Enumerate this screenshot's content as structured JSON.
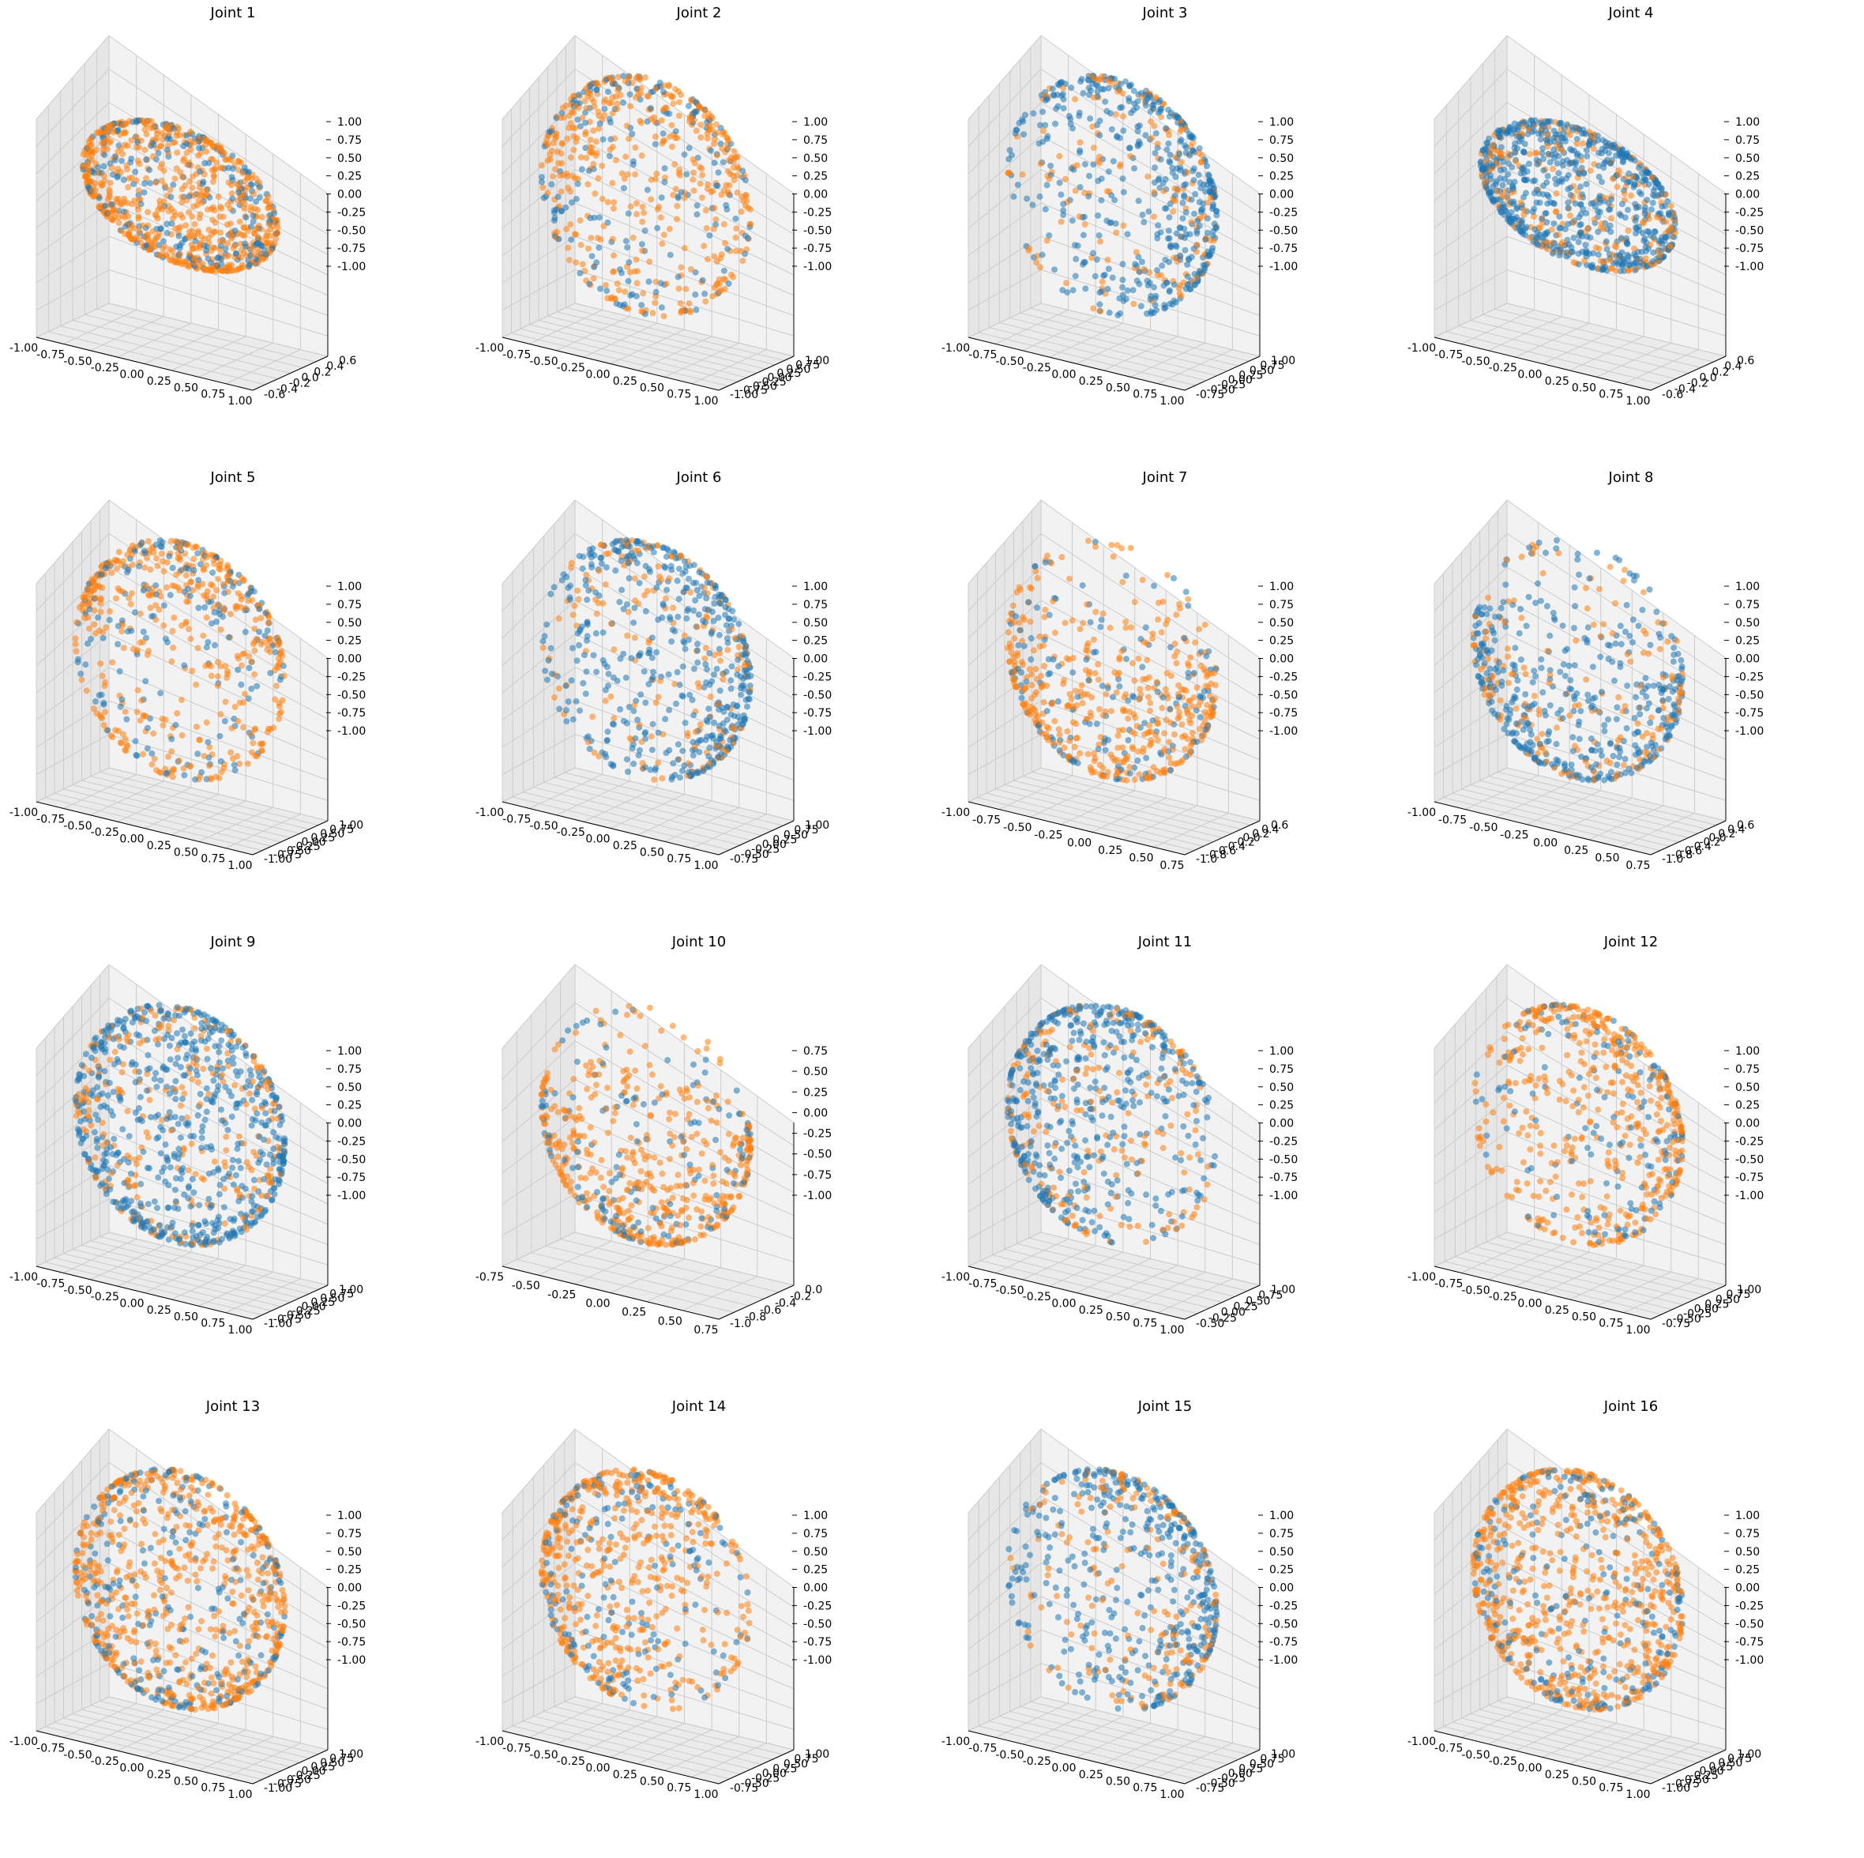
{
  "figure": {
    "rows": 4,
    "cols": 4
  },
  "colors": {
    "series_a": "#1f77b4",
    "series_b": "#ff7f0e",
    "pane_back": "#f2f2f2",
    "pane_side": "#e6e6e6",
    "pane_floor": "#ebebeb",
    "grid": "#cccccc"
  },
  "chart_data": [
    {
      "title": "Joint 1",
      "type": "scatter",
      "shape": "ring",
      "dominant": "orange",
      "seed": 11,
      "xticks": [
        "-1.00",
        "-0.75",
        "-0.50",
        "-0.25",
        "0.00",
        "0.25",
        "0.50",
        "0.75",
        "1.00"
      ],
      "yticks": [
        "-0.6",
        "-0.4",
        "-0.2",
        "0.0",
        "0.2",
        "0.4",
        "0.6"
      ],
      "zticks": [
        "-1.00",
        "-0.75",
        "-0.50",
        "-0.25",
        "0.00",
        "0.25",
        "0.50",
        "0.75",
        "1.00"
      ],
      "xlim": [
        -1,
        1
      ],
      "ylim": [
        -0.7,
        0.7
      ],
      "zlim": [
        -1,
        1
      ],
      "grid": true
    },
    {
      "title": "Joint 2",
      "type": "scatter",
      "shape": "sparse_cap",
      "dominant": "orange",
      "seed": 12,
      "xticks": [
        "-1.00",
        "-0.75",
        "-0.50",
        "-0.25",
        "0.00",
        "0.25",
        "0.50",
        "0.75",
        "1.00"
      ],
      "yticks": [
        "-1.00",
        "-0.75",
        "-0.50",
        "-0.25",
        "0.00",
        "0.25",
        "0.50",
        "0.75",
        "1.00"
      ],
      "zticks": [
        "-1.00",
        "-0.75",
        "-0.50",
        "-0.25",
        "0.00",
        "0.25",
        "0.50",
        "0.75",
        "1.00"
      ],
      "xlim": [
        -1,
        1
      ],
      "ylim": [
        -1,
        1
      ],
      "zlim": [
        -1,
        1
      ],
      "grid": true
    },
    {
      "title": "Joint 3",
      "type": "scatter",
      "shape": "cap_right",
      "dominant": "blue",
      "seed": 13,
      "xticks": [
        "-1.00",
        "-0.75",
        "-0.50",
        "-0.25",
        "0.00",
        "0.25",
        "0.50",
        "0.75",
        "1.00"
      ],
      "yticks": [
        "-0.75",
        "-0.50",
        "-0.25",
        "0.00",
        "0.25",
        "0.50",
        "0.75",
        "1.00"
      ],
      "zticks": [
        "-1.00",
        "-0.75",
        "-0.50",
        "-0.25",
        "0.00",
        "0.25",
        "0.50",
        "0.75",
        "1.00"
      ],
      "xlim": [
        -1,
        1
      ],
      "ylim": [
        -0.85,
        1
      ],
      "zlim": [
        -1,
        1
      ],
      "grid": true
    },
    {
      "title": "Joint 4",
      "type": "scatter",
      "shape": "ring",
      "dominant": "blue",
      "seed": 14,
      "xticks": [
        "-1.00",
        "-0.75",
        "-0.50",
        "-0.25",
        "0.00",
        "0.25",
        "0.50",
        "0.75",
        "1.00"
      ],
      "yticks": [
        "-0.6",
        "-0.4",
        "-0.2",
        "0.0",
        "0.2",
        "0.4",
        "0.6"
      ],
      "zticks": [
        "-1.00",
        "-0.75",
        "-0.50",
        "-0.25",
        "0.00",
        "0.25",
        "0.50",
        "0.75",
        "1.00"
      ],
      "xlim": [
        -1,
        1
      ],
      "ylim": [
        -0.7,
        0.7
      ],
      "zlim": [
        -1,
        1
      ],
      "grid": true
    },
    {
      "title": "Joint 5",
      "type": "scatter",
      "shape": "sparse_cap",
      "dominant": "orange",
      "seed": 15,
      "xticks": [
        "-1.00",
        "-0.75",
        "-0.50",
        "-0.25",
        "0.00",
        "0.25",
        "0.50",
        "0.75",
        "1.00"
      ],
      "yticks": [
        "-1.00",
        "-0.75",
        "-0.50",
        "-0.25",
        "0.00",
        "0.25",
        "0.50",
        "0.75",
        "1.00"
      ],
      "zticks": [
        "-1.00",
        "-0.75",
        "-0.50",
        "-0.25",
        "0.00",
        "0.25",
        "0.50",
        "0.75",
        "1.00"
      ],
      "xlim": [
        -1,
        1
      ],
      "ylim": [
        -1,
        1
      ],
      "zlim": [
        -1,
        1
      ],
      "grid": true
    },
    {
      "title": "Joint 6",
      "type": "scatter",
      "shape": "cap_right",
      "dominant": "blue",
      "seed": 16,
      "xticks": [
        "-1.00",
        "-0.75",
        "-0.50",
        "-0.25",
        "0.00",
        "0.25",
        "0.50",
        "0.75",
        "1.00"
      ],
      "yticks": [
        "-0.75",
        "-0.50",
        "-0.25",
        "0.00",
        "0.25",
        "0.50",
        "0.75",
        "1.00"
      ],
      "zticks": [
        "-1.00",
        "-0.75",
        "-0.50",
        "-0.25",
        "0.00",
        "0.25",
        "0.50",
        "0.75",
        "1.00"
      ],
      "xlim": [
        -1,
        1
      ],
      "ylim": [
        -0.85,
        1
      ],
      "zlim": [
        -1,
        1
      ],
      "grid": true
    },
    {
      "title": "Joint 7",
      "type": "scatter",
      "shape": "bowl",
      "dominant": "orange",
      "seed": 17,
      "xticks": [
        "-1.00",
        "-0.75",
        "-0.50",
        "-0.25",
        "0.00",
        "0.25",
        "0.50",
        "0.75"
      ],
      "yticks": [
        "-1.0",
        "-0.8",
        "-0.6",
        "-0.4",
        "-0.2",
        "0.0",
        "0.2",
        "0.4",
        "0.6"
      ],
      "zticks": [
        "-1.00",
        "-0.75",
        "-0.50",
        "-0.25",
        "0.00",
        "0.25",
        "0.50",
        "0.75",
        "1.00"
      ],
      "xlim": [
        -1,
        0.85
      ],
      "ylim": [
        -1.1,
        0.7
      ],
      "zlim": [
        -1,
        1
      ],
      "grid": true
    },
    {
      "title": "Joint 8",
      "type": "scatter",
      "shape": "bowl",
      "dominant": "blue",
      "seed": 18,
      "xticks": [
        "-1.00",
        "-0.75",
        "-0.50",
        "-0.25",
        "0.00",
        "0.25",
        "0.50",
        "0.75"
      ],
      "yticks": [
        "-1.0",
        "-0.8",
        "-0.6",
        "-0.4",
        "-0.2",
        "0.0",
        "0.2",
        "0.4",
        "0.6"
      ],
      "zticks": [
        "-1.00",
        "-0.75",
        "-0.50",
        "-0.25",
        "0.00",
        "0.25",
        "0.50",
        "0.75",
        "1.00"
      ],
      "xlim": [
        -1,
        0.85
      ],
      "ylim": [
        -1.1,
        0.7
      ],
      "zlim": [
        -1,
        1
      ],
      "grid": true
    },
    {
      "title": "Joint 9",
      "type": "scatter",
      "shape": "sphere",
      "dominant": "blue",
      "seed": 19,
      "xticks": [
        "-1.00",
        "-0.75",
        "-0.50",
        "-0.25",
        "0.00",
        "0.25",
        "0.50",
        "0.75",
        "1.00"
      ],
      "yticks": [
        "-1.00",
        "-0.75",
        "-0.50",
        "-0.25",
        "0.00",
        "0.25",
        "0.50",
        "0.75",
        "1.00"
      ],
      "zticks": [
        "-1.00",
        "-0.75",
        "-0.50",
        "-0.25",
        "0.00",
        "0.25",
        "0.50",
        "0.75",
        "1.00"
      ],
      "xlim": [
        -1,
        1
      ],
      "ylim": [
        -1,
        1
      ],
      "zlim": [
        -1,
        1
      ],
      "grid": true
    },
    {
      "title": "Joint 10",
      "type": "scatter",
      "shape": "bowl",
      "dominant": "orange",
      "seed": 20,
      "xticks": [
        "-0.75",
        "-0.50",
        "-0.25",
        "0.00",
        "0.25",
        "0.50",
        "0.75"
      ],
      "yticks": [
        "-1.0",
        "-0.8",
        "-0.6",
        "-0.4",
        "-0.2",
        "0.0"
      ],
      "zticks": [
        "-1.00",
        "-0.75",
        "-0.50",
        "-0.25",
        "0.00",
        "0.25",
        "0.50",
        "0.75"
      ],
      "xlim": [
        -0.9,
        0.9
      ],
      "ylim": [
        -1.1,
        0.1
      ],
      "zlim": [
        -1,
        0.9
      ],
      "grid": true
    },
    {
      "title": "Joint 11",
      "type": "scatter",
      "shape": "cap_left",
      "dominant": "blue",
      "seed": 21,
      "xticks": [
        "-1.00",
        "-0.75",
        "-0.50",
        "-0.25",
        "0.00",
        "0.25",
        "0.50",
        "0.75",
        "1.00"
      ],
      "yticks": [
        "-0.50",
        "-0.25",
        "0.00",
        "0.25",
        "0.50",
        "0.75",
        "1.00"
      ],
      "zticks": [
        "-1.00",
        "-0.75",
        "-0.50",
        "-0.25",
        "0.00",
        "0.25",
        "0.50",
        "0.75",
        "1.00"
      ],
      "xlim": [
        -1,
        1
      ],
      "ylim": [
        -0.6,
        1
      ],
      "zlim": [
        -1,
        1
      ],
      "grid": true
    },
    {
      "title": "Joint 12",
      "type": "scatter",
      "shape": "cap_right",
      "dominant": "orange",
      "seed": 22,
      "xticks": [
        "-1.00",
        "-0.75",
        "-0.50",
        "-0.25",
        "0.00",
        "0.25",
        "0.50",
        "0.75",
        "1.00"
      ],
      "yticks": [
        "-0.75",
        "-0.50",
        "-0.25",
        "0.00",
        "0.25",
        "0.50",
        "0.75",
        "1.00"
      ],
      "zticks": [
        "-1.00",
        "-0.75",
        "-0.50",
        "-0.25",
        "0.00",
        "0.25",
        "0.50",
        "0.75",
        "1.00"
      ],
      "xlim": [
        -1,
        1
      ],
      "ylim": [
        -0.85,
        1
      ],
      "zlim": [
        -1,
        1
      ],
      "grid": true
    },
    {
      "title": "Joint 13",
      "type": "scatter",
      "shape": "sphere",
      "dominant": "orange",
      "seed": 23,
      "xticks": [
        "-1.00",
        "-0.75",
        "-0.50",
        "-0.25",
        "0.00",
        "0.25",
        "0.50",
        "0.75",
        "1.00"
      ],
      "yticks": [
        "-1.00",
        "-0.75",
        "-0.50",
        "-0.25",
        "0.00",
        "0.25",
        "0.50",
        "0.75",
        "1.00"
      ],
      "zticks": [
        "-1.00",
        "-0.75",
        "-0.50",
        "-0.25",
        "0.00",
        "0.25",
        "0.50",
        "0.75",
        "1.00"
      ],
      "xlim": [
        -1,
        1
      ],
      "ylim": [
        -1,
        1
      ],
      "zlim": [
        -1,
        1
      ],
      "grid": true
    },
    {
      "title": "Joint 14",
      "type": "scatter",
      "shape": "cap_left",
      "dominant": "orange",
      "seed": 24,
      "xticks": [
        "-1.00",
        "-0.75",
        "-0.50",
        "-0.25",
        "0.00",
        "0.25",
        "0.50",
        "0.75",
        "1.00"
      ],
      "yticks": [
        "-0.75",
        "-0.50",
        "-0.25",
        "0.00",
        "0.25",
        "0.50",
        "0.75",
        "1.00"
      ],
      "zticks": [
        "-1.00",
        "-0.75",
        "-0.50",
        "-0.25",
        "0.00",
        "0.25",
        "0.50",
        "0.75",
        "1.00"
      ],
      "xlim": [
        -1,
        1
      ],
      "ylim": [
        -0.85,
        1
      ],
      "zlim": [
        -1,
        1
      ],
      "grid": true
    },
    {
      "title": "Joint 15",
      "type": "scatter",
      "shape": "cap_right",
      "dominant": "blue",
      "seed": 25,
      "xticks": [
        "-1.00",
        "-0.75",
        "-0.50",
        "-0.25",
        "0.00",
        "0.25",
        "0.50",
        "0.75",
        "1.00"
      ],
      "yticks": [
        "-0.75",
        "-0.50",
        "-0.25",
        "0.00",
        "0.25",
        "0.50",
        "0.75",
        "1.00"
      ],
      "zticks": [
        "-1.00",
        "-0.75",
        "-0.50",
        "-0.25",
        "0.00",
        "0.25",
        "0.50",
        "0.75",
        "1.00"
      ],
      "xlim": [
        -1,
        1
      ],
      "ylim": [
        -0.85,
        1
      ],
      "zlim": [
        -1,
        1
      ],
      "grid": true
    },
    {
      "title": "Joint 16",
      "type": "scatter",
      "shape": "sphere",
      "dominant": "orange",
      "seed": 26,
      "xticks": [
        "-1.00",
        "-0.75",
        "-0.50",
        "-0.25",
        "0.00",
        "0.25",
        "0.50",
        "0.75",
        "1.00"
      ],
      "yticks": [
        "-1.00",
        "-0.75",
        "-0.50",
        "-0.25",
        "0.00",
        "0.25",
        "0.50",
        "0.75",
        "1.00"
      ],
      "zticks": [
        "-1.00",
        "-0.75",
        "-0.50",
        "-0.25",
        "0.00",
        "0.25",
        "0.50",
        "0.75",
        "1.00"
      ],
      "xlim": [
        -1,
        1
      ],
      "ylim": [
        -1,
        1
      ],
      "zlim": [
        -1,
        1
      ],
      "grid": true
    }
  ]
}
